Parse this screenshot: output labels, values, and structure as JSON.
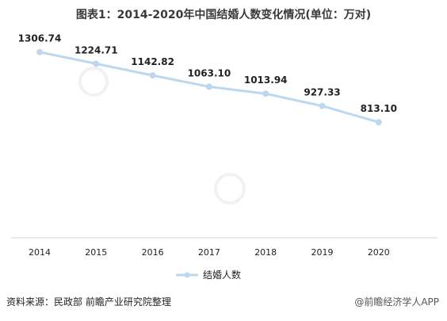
{
  "chart_data": {
    "type": "line",
    "title": "图表1：2014-2020年中国结婚人数变化情况(单位：万对)",
    "categories": [
      "2014",
      "2015",
      "2016",
      "2017",
      "2018",
      "2019",
      "2020"
    ],
    "series": [
      {
        "name": "结婚人数",
        "values": [
          1306.74,
          1224.71,
          1142.82,
          1063.1,
          1013.94,
          927.33,
          813.1
        ],
        "color": "#bdd7ee"
      }
    ],
    "ylim": [
      0,
      1450
    ],
    "grid": false,
    "legend": "bottom"
  },
  "source": "资料来源：民政部 前瞻产业研究院整理",
  "credit": "@前瞻经济学人APP"
}
